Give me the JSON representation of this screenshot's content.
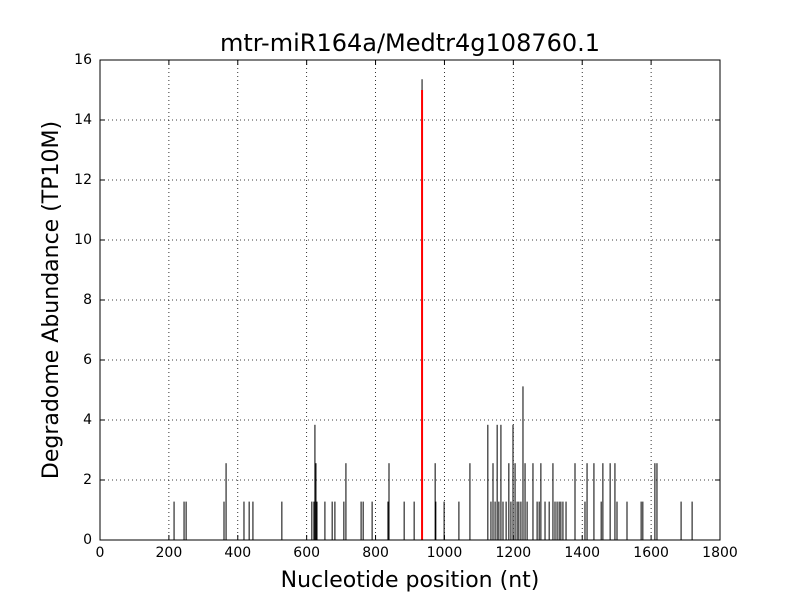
{
  "chart_data": {
    "type": "bar",
    "title": "mtr-miR164a/Medtr4g108760.1",
    "x_label": "Nucleotide position (nt)",
    "y_label": "Degradome Abundance (TP10M)",
    "xlim": [
      0,
      1800
    ],
    "xticks": [
      0,
      200,
      400,
      600,
      800,
      1000,
      1200,
      1400,
      1600,
      1800
    ],
    "ylim": [
      0,
      16
    ],
    "yticks": [
      0,
      2,
      4,
      6,
      8,
      10,
      12,
      14,
      16
    ],
    "grid": true,
    "series": [
      {
        "color": "#000000",
        "x": [
          215,
          244,
          250,
          360,
          366,
          418,
          433,
          444,
          528,
          615,
          621,
          624,
          627,
          630,
          653,
          674,
          682,
          708,
          714,
          758,
          764,
          790,
          836,
          839,
          883,
          912,
          935,
          973,
          975,
          999,
          1042,
          1074,
          1126,
          1135,
          1141,
          1147,
          1153,
          1158,
          1164,
          1170,
          1179,
          1187,
          1193,
          1199,
          1205,
          1211,
          1216,
          1222,
          1228,
          1234,
          1240,
          1257,
          1269,
          1275,
          1280,
          1292,
          1304,
          1315,
          1321,
          1327,
          1333,
          1338,
          1344,
          1353,
          1379,
          1408,
          1414,
          1434,
          1455,
          1460,
          1481,
          1495,
          1501,
          1530,
          1571,
          1576,
          1611,
          1617,
          1687,
          1719
        ],
        "values": [
          1.28,
          1.28,
          1.28,
          1.28,
          2.56,
          1.28,
          1.28,
          1.28,
          1.28,
          1.28,
          1.28,
          3.84,
          2.56,
          1.28,
          1.28,
          1.28,
          1.28,
          1.28,
          2.56,
          1.28,
          1.28,
          1.28,
          1.28,
          2.56,
          1.28,
          1.28,
          15.36,
          2.56,
          1.28,
          1.28,
          1.28,
          2.56,
          3.84,
          1.28,
          2.56,
          1.28,
          3.84,
          1.28,
          3.84,
          1.28,
          1.28,
          2.56,
          1.28,
          3.84,
          2.56,
          1.28,
          1.28,
          1.28,
          5.12,
          2.56,
          1.28,
          2.56,
          1.28,
          1.28,
          2.56,
          1.28,
          1.28,
          2.56,
          1.28,
          1.28,
          1.28,
          1.28,
          1.28,
          1.28,
          2.56,
          1.28,
          2.56,
          2.56,
          1.28,
          2.56,
          2.56,
          2.56,
          1.28,
          1.28,
          1.28,
          1.28,
          2.56,
          2.56,
          1.28,
          1.28
        ]
      },
      {
        "color": "#ff0000",
        "x": [
          935
        ],
        "values": [
          15
        ]
      }
    ]
  }
}
